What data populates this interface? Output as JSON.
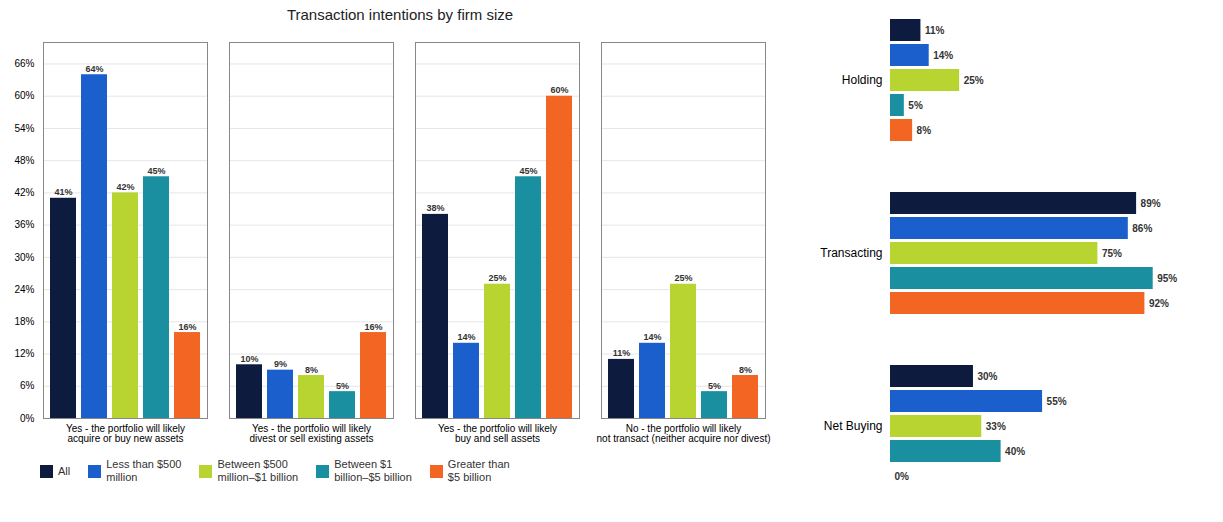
{
  "chart_data": [
    {
      "type": "bar",
      "title": "Transaction intentions by firm size",
      "categories": [
        "Yes - the portfolio will likely\nacquire or buy new assets",
        "Yes - the portfolio will likely\ndivest or sell existing assets",
        "Yes - the portfolio will likely\nbuy and sell assets",
        "No - the portfolio will likely\nnot transact (neither acquire nor divest)"
      ],
      "series": [
        {
          "name": "All",
          "color": "#0d1b3e",
          "values": [
            41,
            10,
            38,
            11
          ],
          "value_labels": [
            "41%",
            "10%",
            "38%",
            "11%"
          ]
        },
        {
          "name": "Less than $500\nmillion",
          "color": "#1a5fcb",
          "values": [
            64,
            9,
            14,
            14
          ],
          "value_labels": [
            "64%",
            "9%",
            "14%",
            "14%"
          ]
        },
        {
          "name": "Between $500\nmillion–$1 billion",
          "color": "#b8d430",
          "values": [
            42,
            8,
            25,
            25
          ],
          "value_labels": [
            "42%",
            "8%",
            "25%",
            "25%"
          ]
        },
        {
          "name": "Between $1\nbillion–$5 billion",
          "color": "#1a8fa0",
          "values": [
            45,
            5,
            45,
            5
          ],
          "value_labels": [
            "45%",
            "5%",
            "45%",
            "5%"
          ]
        },
        {
          "name": "Greater than\n$5 billion",
          "color": "#f26522",
          "values": [
            16,
            16,
            60,
            8
          ],
          "value_labels": [
            "16%",
            "16%",
            "60%",
            "8%"
          ]
        }
      ],
      "ylim": [
        0,
        70
      ],
      "yticks": [
        {
          "value": 0,
          "label": "0%"
        },
        {
          "value": 6,
          "label": "6%"
        },
        {
          "value": 12,
          "label": "12%"
        },
        {
          "value": 18,
          "label": "18%"
        },
        {
          "value": 24,
          "label": "24%"
        },
        {
          "value": 30,
          "label": "30%"
        },
        {
          "value": 36,
          "label": "36%"
        },
        {
          "value": 42,
          "label": "42%"
        },
        {
          "value": 48,
          "label": "48%"
        },
        {
          "value": 54,
          "label": "54%"
        },
        {
          "value": 60,
          "label": "60%"
        },
        {
          "value": 66,
          "label": "66%"
        }
      ],
      "grid": true,
      "data_labels": true,
      "legend": "lower left"
    },
    {
      "type": "bar",
      "orientation": "horizontal",
      "categories": [
        "Holding",
        "Transacting",
        "Net Buying"
      ],
      "series": [
        {
          "name": "All",
          "color": "#0d1b3e",
          "values": [
            11,
            89,
            30
          ],
          "value_labels": [
            "11%",
            "89%",
            "30%"
          ]
        },
        {
          "name": "Less than $500\nmillion",
          "color": "#1a5fcb",
          "values": [
            14,
            86,
            55
          ],
          "value_labels": [
            "14%",
            "86%",
            "55%"
          ]
        },
        {
          "name": "Between $500\nmillion–$1 billion",
          "color": "#b8d430",
          "values": [
            25,
            75,
            33
          ],
          "value_labels": [
            "25%",
            "75%",
            "33%"
          ]
        },
        {
          "name": "Between $1\nbillion–$5 billion",
          "color": "#1a8fa0",
          "values": [
            5,
            95,
            40
          ],
          "value_labels": [
            "5%",
            "95%",
            "40%"
          ]
        },
        {
          "name": "Greater than\n$5 billion",
          "color": "#f26522",
          "values": [
            8,
            92,
            0
          ],
          "value_labels": [
            "8%",
            "92%",
            "0%"
          ]
        }
      ],
      "xlim": [
        0,
        115
      ],
      "tick_labels": "y",
      "data_labels": true
    }
  ]
}
